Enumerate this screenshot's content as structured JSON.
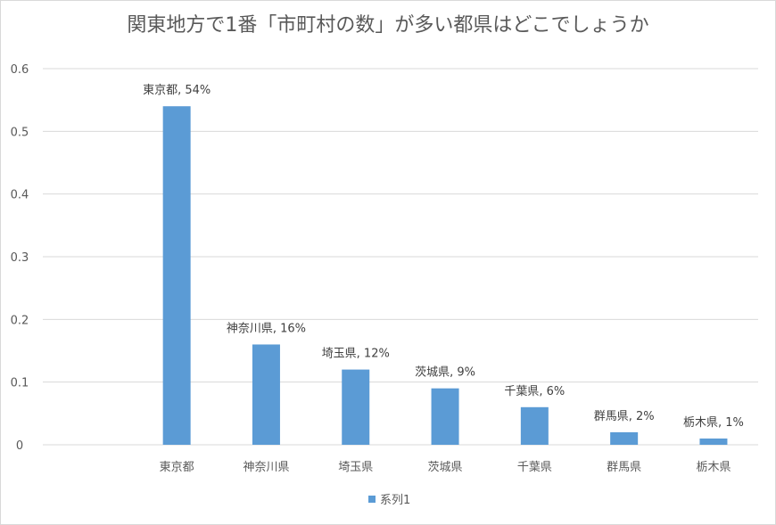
{
  "chart_data": {
    "type": "bar",
    "title": "関東地方で1番「市町村の数」が多い都県はどこでしょうか",
    "xlabel": "",
    "ylabel": "",
    "categories": [
      "東京都",
      "神奈川県",
      "埼玉県",
      "茨城県",
      "千葉県",
      "群馬県",
      "栃木県"
    ],
    "series": [
      {
        "name": "系列1",
        "values": [
          0.54,
          0.16,
          0.12,
          0.09,
          0.06,
          0.02,
          0.01
        ],
        "data_labels": [
          "東京都, 54%",
          "神奈川県, 16%",
          "埼玉県, 12%",
          "茨城県, 9%",
          "千葉県, 6%",
          "群馬県, 2%",
          "栃木県, 1%"
        ]
      }
    ],
    "ylim": [
      0,
      0.6
    ],
    "yticks": [
      "0",
      "0.1",
      "0.2",
      "0.3",
      "0.4",
      "0.5",
      "0.6"
    ],
    "grid": true,
    "legend_position": "bottom",
    "bar_color": "#5b9bd5",
    "grid_color": "#d9d9d9"
  }
}
